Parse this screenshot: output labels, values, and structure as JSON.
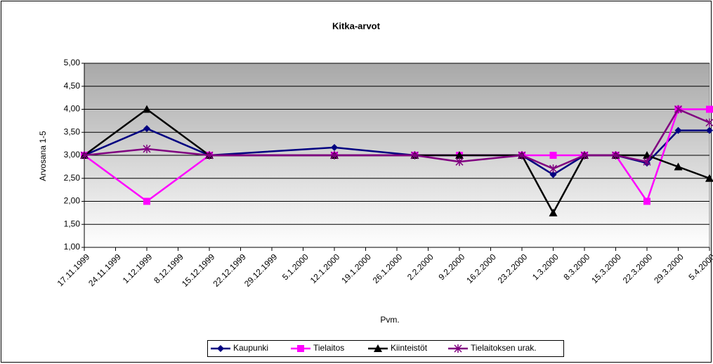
{
  "chart_data": {
    "type": "line",
    "title": "Kitka-arvot",
    "x_label": "Pvm.",
    "y_label": "Arvosana 1-5",
    "x": [
      "17.11.1999",
      "1.12.1999",
      "15.12.1999",
      "12.1.2000",
      "30.1.2000",
      "9.2.2000",
      "23.2.2000",
      "1.3.2000",
      "8.3.2000",
      "15.3.2000",
      "22.3.2000",
      "29.3.2000",
      "5.4.2000"
    ],
    "series": [
      {
        "name": "Kaupunki",
        "color": "#000080",
        "marker": "diamond",
        "values": [
          3.0,
          3.58,
          3.0,
          3.17,
          3.0,
          3.0,
          3.0,
          2.58,
          3.0,
          3.0,
          2.83,
          3.54,
          3.54
        ]
      },
      {
        "name": "Tielaitos",
        "color": "#ff00ff",
        "marker": "square",
        "values": [
          3.0,
          2.0,
          3.0,
          3.0,
          3.0,
          3.0,
          3.0,
          3.0,
          3.0,
          3.0,
          2.0,
          4.0,
          4.0
        ]
      },
      {
        "name": "Kiinteistöt",
        "color": "#000000",
        "marker": "triangle",
        "values": [
          3.0,
          4.0,
          3.0,
          3.0,
          3.0,
          3.0,
          3.0,
          1.75,
          3.0,
          3.0,
          3.0,
          2.75,
          2.5
        ]
      },
      {
        "name": "Tielaitoksen urak.",
        "color": "#800080",
        "marker": "star",
        "values": [
          3.0,
          3.14,
          3.0,
          3.0,
          3.0,
          2.86,
          3.0,
          2.71,
          3.0,
          3.0,
          2.86,
          4.0,
          3.71
        ]
      }
    ],
    "xlim": [
      "17.11.1999",
      "5.4.2000"
    ],
    "xticks": [
      "17.11.1999",
      "24.11.1999",
      "1.12.1999",
      "8.12.1999",
      "15.12.1999",
      "22.12.1999",
      "29.12.1999",
      "5.1.2000",
      "12.1.2000",
      "19.1.2000",
      "26.1.2000",
      "2.2.2000",
      "9.2.2000",
      "16.2.2000",
      "23.2.2000",
      "1.3.2000",
      "8.3.2000",
      "15.3.2000",
      "22.3.2000",
      "29.3.2000",
      "5.4.2000"
    ],
    "ylim": [
      1,
      5
    ],
    "yticks": [
      {
        "value": 1,
        "label": "1,00"
      },
      {
        "value": 1.5,
        "label": "1,50"
      },
      {
        "value": 2,
        "label": "2,00"
      },
      {
        "value": 2.5,
        "label": "2,50"
      },
      {
        "value": 3,
        "label": "3,00"
      },
      {
        "value": 3.5,
        "label": "3,50"
      },
      {
        "value": 4,
        "label": "4,00"
      },
      {
        "value": 4.5,
        "label": "4,50"
      },
      {
        "value": 5,
        "label": "5,00"
      }
    ],
    "grid": true,
    "legend": "bottom"
  }
}
